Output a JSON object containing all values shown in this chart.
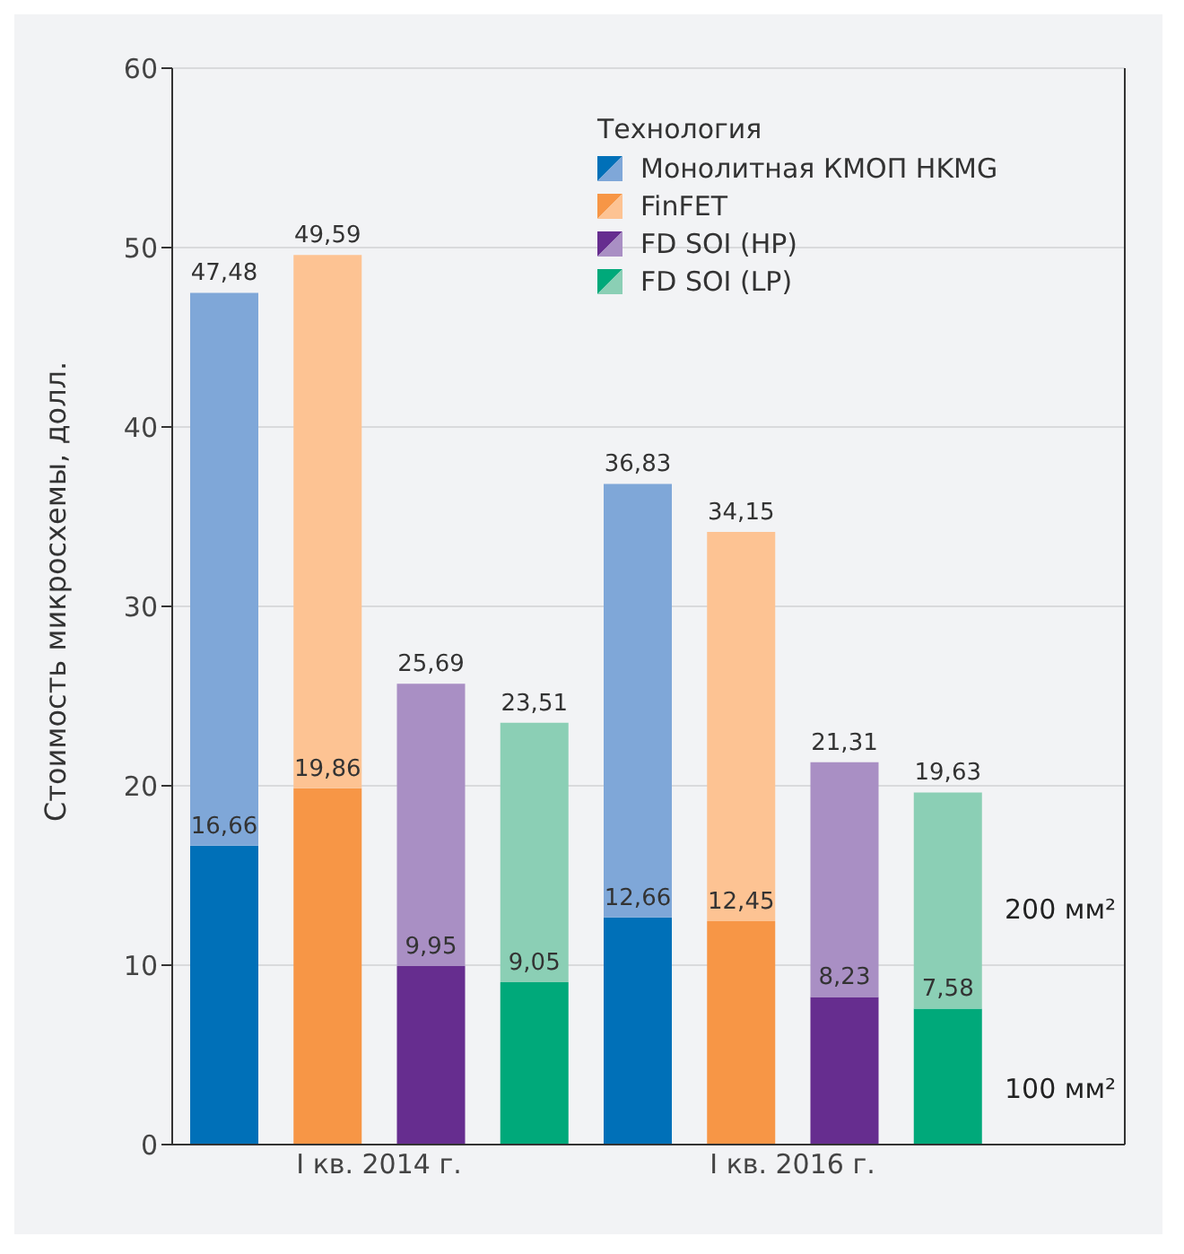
{
  "chart_data": {
    "type": "bar",
    "stacked": true,
    "categories": [
      null,
      null,
      null,
      null,
      null,
      null,
      null,
      null
    ],
    "ylabel": "Стоимость микросхемы, долл.",
    "legend_title": "Технология",
    "ylim": [
      0,
      60
    ],
    "yticks": [
      0,
      10,
      20,
      30,
      40,
      50,
      60
    ],
    "grid": "y",
    "legend": "top right",
    "annotations": [
      "I кв. 2014 г.",
      "I кв. 2016 г.",
      "200 мм²",
      "100 мм²"
    ],
    "totals": [
      "47,48",
      "49,59",
      "25,69",
      "23,51",
      "36,83",
      "34,15",
      "21,31",
      "19,63"
    ],
    "series": [
      {
        "name": "Монолитная КМОП HKMG",
        "color": "#0070b8",
        "values": [
          16.66,
          null,
          null,
          null,
          12.66,
          null,
          null,
          null
        ],
        "value_labels": [
          "16,66",
          null,
          null,
          null,
          "12,66",
          null,
          null,
          null
        ]
      },
      {
        "name": "FinFET",
        "color": "#f79646",
        "values": [
          null,
          19.86,
          null,
          null,
          null,
          12.45,
          null,
          null
        ],
        "value_labels": [
          null,
          "19,86",
          null,
          null,
          null,
          "12,45",
          null,
          null
        ]
      },
      {
        "name": "FD SOI (HP)",
        "color": "#662d8f",
        "values": [
          null,
          null,
          9.95,
          null,
          null,
          null,
          8.23,
          null
        ],
        "value_labels": [
          null,
          null,
          "9,95",
          null,
          null,
          null,
          "8,23",
          null
        ]
      },
      {
        "name": "FD SOI (LP)",
        "color": "#00a97a",
        "values": [
          null,
          null,
          null,
          9.05,
          null,
          null,
          null,
          7.58
        ],
        "value_labels": [
          null,
          null,
          null,
          "9,05",
          null,
          null,
          null,
          "7,58"
        ]
      },
      {
        "color": "#7fa7d8",
        "values": [
          30.82,
          null,
          null,
          null,
          24.17,
          null,
          null,
          null
        ]
      },
      {
        "color": "#fdc393",
        "values": [
          null,
          29.73,
          null,
          null,
          null,
          21.7,
          null,
          null
        ]
      },
      {
        "color": "#a98fc4",
        "values": [
          null,
          null,
          15.74,
          null,
          null,
          null,
          13.08,
          null
        ]
      },
      {
        "color": "#8bcfb5",
        "values": [
          null,
          null,
          null,
          14.46,
          null,
          null,
          null,
          12.05
        ]
      }
    ]
  }
}
